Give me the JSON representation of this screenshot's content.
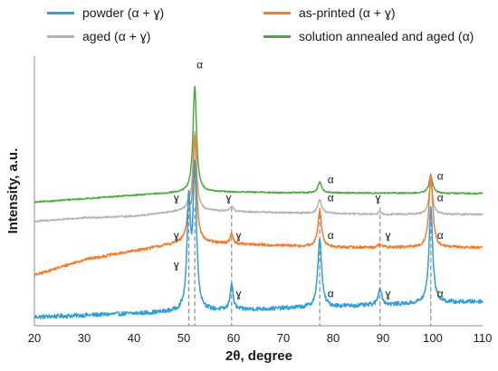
{
  "chart_data": {
    "type": "line",
    "title": "",
    "xlabel": "2θ, degree",
    "ylabel": "Intensity, a.u.",
    "xlim": [
      20,
      110
    ],
    "xticks": [
      20,
      30,
      40,
      50,
      60,
      70,
      80,
      90,
      100,
      110
    ],
    "grid": false,
    "legend_position": "top",
    "reference_lines_2theta": [
      51.0,
      52.2,
      59.6,
      77.3,
      89.4,
      99.6
    ],
    "series": [
      {
        "name": "powder (α + ɣ)",
        "color": "#2e9fd8",
        "baseline": 0.0,
        "background": [
          [
            20,
            0.0
          ],
          [
            110,
            0.09
          ]
        ],
        "peaks": [
          [
            51.0,
            0.62,
            0.4
          ],
          [
            52.2,
            0.8,
            0.42
          ],
          [
            59.6,
            0.15,
            0.35
          ],
          [
            77.3,
            0.4,
            0.45
          ],
          [
            89.4,
            0.1,
            0.4
          ],
          [
            99.6,
            0.55,
            0.45
          ]
        ],
        "noise": 0.012
      },
      {
        "name": "as-printed (α + ɣ)",
        "color": "#f27c2a",
        "baseline": 0.3,
        "background": [
          [
            20,
            -0.06
          ],
          [
            30,
            0.03
          ],
          [
            40,
            0.08
          ],
          [
            50,
            0.13
          ],
          [
            60,
            0.12
          ],
          [
            80,
            0.1
          ],
          [
            110,
            0.1
          ]
        ],
        "peaks": [
          [
            51.0,
            0.18,
            0.4
          ],
          [
            52.2,
            0.6,
            0.42
          ],
          [
            59.6,
            0.06,
            0.35
          ],
          [
            77.3,
            0.21,
            0.45
          ],
          [
            89.4,
            0.02,
            0.4
          ],
          [
            99.6,
            0.42,
            0.45
          ]
        ],
        "noise": 0.008
      },
      {
        "name": "aged (α + ɣ)",
        "color": "#b3b3b3",
        "baseline": 0.57,
        "background": [
          [
            20,
            -0.02
          ],
          [
            30,
            0.0
          ],
          [
            40,
            0.01
          ],
          [
            50,
            0.04
          ],
          [
            55,
            0.04
          ],
          [
            70,
            0.03
          ],
          [
            90,
            0.02
          ],
          [
            110,
            0.02
          ]
        ],
        "peaks": [
          [
            51.0,
            0.03,
            0.4
          ],
          [
            52.2,
            0.45,
            0.42
          ],
          [
            59.6,
            0.03,
            0.35
          ],
          [
            77.3,
            0.08,
            0.45
          ],
          [
            89.4,
            0.015,
            0.4
          ],
          [
            99.6,
            0.18,
            0.45
          ]
        ],
        "noise": 0.005
      },
      {
        "name": "solution annealed and aged (α)",
        "color": "#4aab3c",
        "baseline": 0.68,
        "background": [
          [
            20,
            -0.02
          ],
          [
            30,
            0.0
          ],
          [
            40,
            0.02
          ],
          [
            49,
            0.035
          ],
          [
            55,
            0.04
          ],
          [
            70,
            0.035
          ],
          [
            110,
            0.03
          ]
        ],
        "peaks": [
          [
            52.2,
            0.61,
            0.42
          ],
          [
            77.3,
            0.06,
            0.45
          ],
          [
            99.6,
            0.1,
            0.45
          ]
        ],
        "noise": 0.004
      }
    ],
    "annotations": [
      {
        "text": "α",
        "x": 53.2,
        "y": 1.43
      },
      {
        "text": "α",
        "x": 79.5,
        "y": 0.77
      },
      {
        "text": "α",
        "x": 101.5,
        "y": 0.79
      },
      {
        "text": "ɣ",
        "x": 48.5,
        "y": 0.665
      },
      {
        "text": "ɣ",
        "x": 59.0,
        "y": 0.665
      },
      {
        "text": "α",
        "x": 79.5,
        "y": 0.665
      },
      {
        "text": "ɣ",
        "x": 89.0,
        "y": 0.665
      },
      {
        "text": "α",
        "x": 101.5,
        "y": 0.665
      },
      {
        "text": "ɣ",
        "x": 48.5,
        "y": 0.45
      },
      {
        "text": "ɣ",
        "x": 61.0,
        "y": 0.45
      },
      {
        "text": "α",
        "x": 79.5,
        "y": 0.45
      },
      {
        "text": "ɣ",
        "x": 91.0,
        "y": 0.45
      },
      {
        "text": "α",
        "x": 101.5,
        "y": 0.45
      },
      {
        "text": "ɣ",
        "x": 48.5,
        "y": 0.28
      },
      {
        "text": "ɣ",
        "x": 61.0,
        "y": 0.115
      },
      {
        "text": "α",
        "x": 79.5,
        "y": 0.115
      },
      {
        "text": "ɣ",
        "x": 91.0,
        "y": 0.115
      },
      {
        "text": "α",
        "x": 101.5,
        "y": 0.115
      }
    ]
  }
}
